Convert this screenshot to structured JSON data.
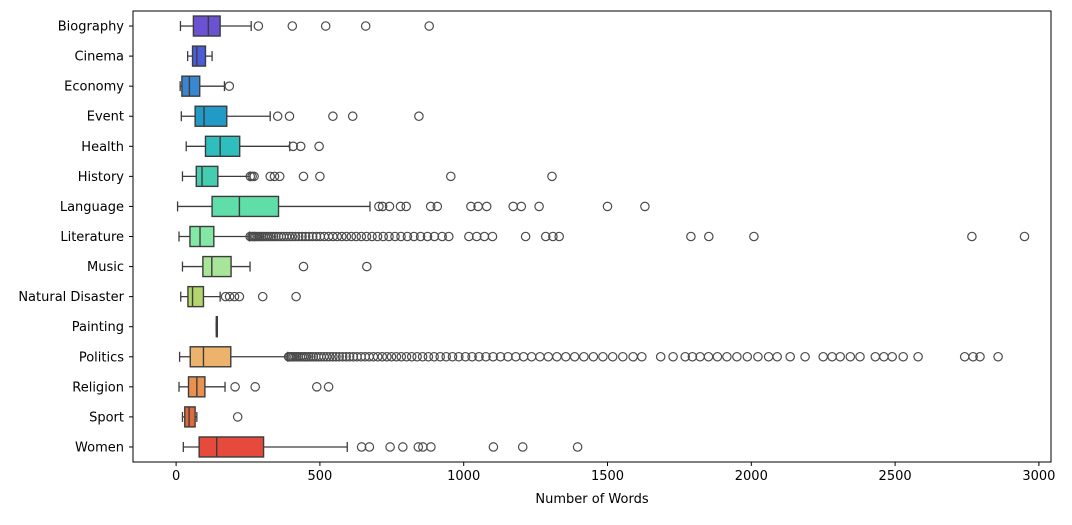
{
  "chart_data": {
    "type": "boxplot-horizontal",
    "title": "",
    "xlabel": "Number of Words",
    "xticks": [
      0,
      500,
      1000,
      1500,
      2000,
      2500,
      3000
    ],
    "xlim": [
      -150,
      3042
    ],
    "grid": false,
    "legend": "none",
    "categories": [
      "Biography",
      "Cinema",
      "Economy",
      "Event",
      "Health",
      "History",
      "Language",
      "Literature",
      "Music",
      "Natural Disaster",
      "Painting",
      "Politics",
      "Religion",
      "Sport",
      "Women"
    ],
    "style": {
      "axis_color": "#000000",
      "box_edge_color": "#3c3c3c",
      "outlier_color": "#4b4b4b",
      "background": "#ffffff"
    },
    "series": [
      {
        "category": "Biography",
        "color": "#6b52d3",
        "whisker_min": 15,
        "q1": 60,
        "median": 112,
        "q3": 153,
        "whisker_max": 261,
        "outliers": [
          286,
          404,
          520,
          659,
          880
        ]
      },
      {
        "category": "Cinema",
        "color": "#4a5cd9",
        "whisker_min": 40,
        "q1": 57,
        "median": 72,
        "q3": 102,
        "whisker_max": 125,
        "outliers": []
      },
      {
        "category": "Economy",
        "color": "#3a86d1",
        "whisker_min": 14,
        "q1": 20,
        "median": 46,
        "q3": 82,
        "whisker_max": 168,
        "outliers": [
          185
        ]
      },
      {
        "category": "Event",
        "color": "#219ac8",
        "whisker_min": 18,
        "q1": 66,
        "median": 97,
        "q3": 176,
        "whisker_max": 327,
        "outliers": [
          353,
          394,
          545,
          614,
          844
        ]
      },
      {
        "category": "Health",
        "color": "#30bdbe",
        "whisker_min": 35,
        "q1": 102,
        "median": 153,
        "q3": 221,
        "whisker_max": 395,
        "outliers": [
          407,
          433,
          497
        ]
      },
      {
        "category": "History",
        "color": "#44cdb0",
        "whisker_min": 22,
        "q1": 70,
        "median": 90,
        "q3": 145,
        "whisker_max": 257,
        "outliers": [
          258,
          264,
          271,
          327,
          342,
          360,
          443,
          500,
          955,
          1307
        ]
      },
      {
        "category": "Language",
        "color": "#5fdea9",
        "whisker_min": 5,
        "q1": 125,
        "median": 220,
        "q3": 356,
        "whisker_max": 674,
        "outliers": [
          705,
          718,
          742,
          780,
          800,
          885,
          908,
          1025,
          1050,
          1080,
          1172,
          1200,
          1262,
          1500,
          1630
        ]
      },
      {
        "category": "Literature",
        "color": "#83e8a6",
        "whisker_min": 10,
        "q1": 48,
        "median": 83,
        "q3": 131,
        "whisker_max": 255,
        "outliers": [
          257,
          263,
          268,
          273,
          278,
          284,
          290,
          296,
          302,
          309,
          316,
          323,
          331,
          339,
          347,
          356,
          365,
          374,
          384,
          394,
          404,
          415,
          426,
          438,
          450,
          462,
          475,
          488,
          501,
          515,
          530,
          545,
          560,
          576,
          592,
          609,
          626,
          644,
          662,
          681,
          700,
          720,
          740,
          761,
          782,
          804,
          827,
          850,
          874,
          898,
          925,
          948,
          1018,
          1045,
          1072,
          1100,
          1215,
          1285,
          1310,
          1332,
          1790,
          1852,
          2009,
          2767,
          2950
        ]
      },
      {
        "category": "Music",
        "color": "#a7e699",
        "whisker_min": 22,
        "q1": 93,
        "median": 124,
        "q3": 191,
        "whisker_max": 257,
        "outliers": [
          443,
          663
        ]
      },
      {
        "category": "Natural Disaster",
        "color": "#b2d56f",
        "whisker_min": 16,
        "q1": 41,
        "median": 57,
        "q3": 95,
        "whisker_max": 153,
        "outliers": [
          172,
          186,
          203,
          220,
          301,
          417
        ]
      },
      {
        "category": "Painting",
        "color": "#dcd465",
        "whisker_min": 140,
        "q1": 140,
        "median": 140,
        "q3": 140,
        "whisker_max": 140,
        "outliers": []
      },
      {
        "category": "Politics",
        "color": "#edb26c",
        "whisker_min": 12,
        "q1": 49,
        "median": 95,
        "q3": 190,
        "whisker_max": 388,
        "outliers": [
          391,
          396,
          401,
          407,
          413,
          419,
          425,
          432,
          439,
          446,
          453,
          461,
          469,
          477,
          486,
          495,
          504,
          514,
          524,
          534,
          545,
          556,
          567,
          579,
          591,
          603,
          616,
          629,
          643,
          657,
          671,
          686,
          701,
          717,
          733,
          749,
          766,
          783,
          801,
          819,
          838,
          857,
          877,
          897,
          918,
          939,
          961,
          983,
          1006,
          1029,
          1053,
          1077,
          1102,
          1128,
          1154,
          1181,
          1208,
          1236,
          1265,
          1294,
          1324,
          1355,
          1386,
          1418,
          1451,
          1484,
          1518,
          1553,
          1589,
          1619,
          1685,
          1728,
          1770,
          1795,
          1822,
          1851,
          1882,
          1915,
          1950,
          1986,
          2023,
          2060,
          2090,
          2135,
          2187,
          2250,
          2281,
          2309,
          2344,
          2378,
          2431,
          2461,
          2490,
          2528,
          2580,
          2742,
          2771,
          2795,
          2858
        ]
      },
      {
        "category": "Religion",
        "color": "#ea9150",
        "whisker_min": 10,
        "q1": 43,
        "median": 72,
        "q3": 100,
        "whisker_max": 170,
        "outliers": [
          205,
          275,
          489,
          530
        ]
      },
      {
        "category": "Sport",
        "color": "#e16a3d",
        "whisker_min": 22,
        "q1": 30,
        "median": 45,
        "q3": 66,
        "whisker_max": 72,
        "outliers": [
          214
        ]
      },
      {
        "category": "Women",
        "color": "#e54a3c",
        "whisker_min": 25,
        "q1": 80,
        "median": 141,
        "q3": 304,
        "whisker_max": 595,
        "outliers": [
          645,
          672,
          744,
          788,
          842,
          858,
          886,
          1103,
          1205,
          1396
        ]
      }
    ]
  }
}
